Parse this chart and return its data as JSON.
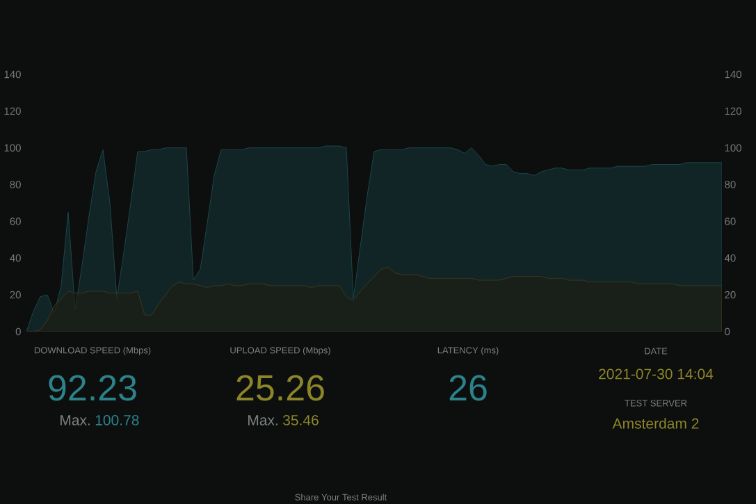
{
  "chart_data": [
    {
      "type": "area",
      "categories": [
        null,
        null,
        null,
        null,
        null,
        null,
        null,
        null,
        null,
        null,
        null,
        null,
        null,
        null,
        null,
        null,
        null,
        null,
        null,
        null,
        null,
        null,
        null,
        null,
        null,
        null,
        null,
        null,
        null,
        null,
        null,
        null,
        null,
        null,
        null,
        null,
        null,
        null,
        null,
        null,
        null,
        null,
        null,
        null,
        null,
        null,
        null,
        null,
        null,
        null,
        null,
        null,
        null,
        null,
        null,
        null,
        null,
        null,
        null,
        null,
        null,
        null,
        null,
        null,
        null,
        null,
        null,
        null,
        null,
        null,
        null,
        null,
        null,
        null,
        null,
        null,
        null,
        null,
        null,
        null,
        null,
        null,
        null,
        null,
        null,
        null,
        null,
        null,
        null,
        null,
        null,
        null,
        null,
        null,
        null,
        null,
        null,
        null,
        null,
        null,
        null
      ],
      "series": [
        {
          "color": "#112426",
          "values": [
            0,
            11,
            19,
            20,
            10,
            25,
            65,
            12,
            36,
            63,
            87,
            99,
            70,
            18,
            43,
            70,
            98,
            98,
            99,
            99,
            100,
            100,
            100,
            100,
            28,
            34,
            59,
            85,
            99,
            99,
            99,
            99,
            100,
            100,
            100,
            100,
            100,
            100,
            100,
            100,
            100,
            100,
            100,
            101,
            101,
            101,
            100,
            18,
            46,
            74,
            98,
            99,
            99,
            99,
            99,
            100,
            100,
            100,
            100,
            100,
            100,
            100,
            99,
            97,
            100,
            96,
            91,
            90,
            91,
            91,
            87,
            86,
            86,
            85,
            87,
            88,
            89,
            89,
            88,
            88,
            88,
            89,
            89,
            89,
            89,
            90,
            90,
            90,
            90,
            90,
            91,
            91,
            91,
            91,
            91,
            92,
            92,
            92,
            92,
            92,
            92
          ]
        },
        {
          "color": "#1f1e10",
          "values": [
            0,
            0,
            1,
            6,
            14,
            18,
            22,
            21,
            21,
            22,
            22,
            22,
            21,
            21,
            21,
            21,
            22,
            9,
            9,
            15,
            20,
            25,
            27,
            26,
            26,
            25,
            24,
            25,
            25,
            26,
            25,
            25,
            26,
            26,
            26,
            25,
            25,
            25,
            25,
            25,
            25,
            24,
            25,
            25,
            25,
            25,
            19,
            17,
            22,
            26,
            30,
            34,
            35,
            32,
            31,
            31,
            31,
            30,
            29,
            29,
            29,
            29,
            29,
            29,
            29,
            28,
            28,
            28,
            28,
            29,
            30,
            30,
            30,
            30,
            30,
            29,
            29,
            29,
            28,
            28,
            28,
            27,
            27,
            27,
            27,
            27,
            27,
            27,
            26,
            26,
            26,
            26,
            26,
            26,
            25,
            25,
            25,
            25,
            25,
            25,
            25
          ]
        }
      ],
      "ylim": [
        0,
        140
      ],
      "yticks": [
        0,
        20,
        40,
        60,
        80,
        100,
        120,
        140
      ],
      "y2lim": [
        0,
        140
      ],
      "y2ticks": [
        0,
        20,
        40,
        60,
        80,
        100,
        120,
        140
      ]
    },
    {
      "type": "other",
      "annotations": [
        "DOWNLOAD SPEED (Mbps)",
        "92.23",
        "Max.",
        "100.78",
        "UPLOAD SPEED (Mbps)",
        "25.26",
        "Max.",
        "35.46",
        "LATENCY (ms)",
        "26",
        "DATE",
        "2021-07-30 14:04",
        "TEST SERVER",
        "Amsterdam 2",
        "Share Your Test Result"
      ]
    }
  ]
}
